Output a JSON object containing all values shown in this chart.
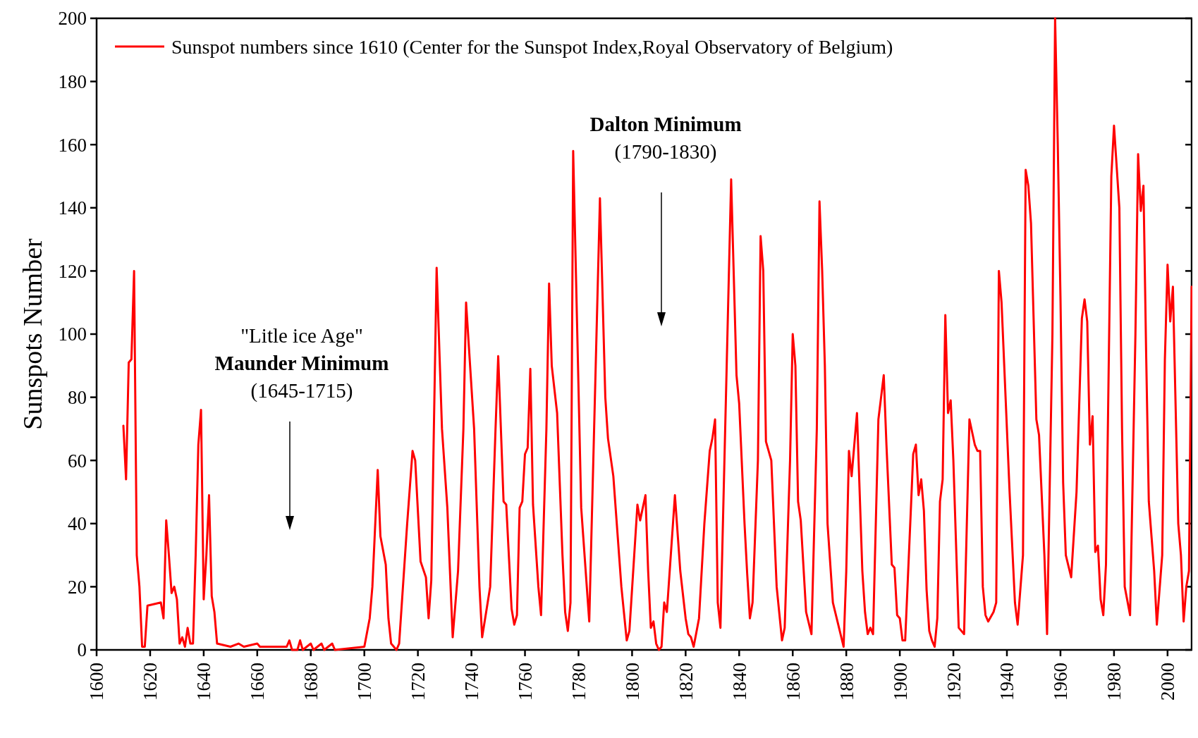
{
  "chart_data": {
    "type": "line",
    "ylabel": "Sunspots Number",
    "xlim": [
      1600,
      2009
    ],
    "xticks": [
      1600,
      1620,
      1640,
      1660,
      1680,
      1700,
      1720,
      1740,
      1760,
      1780,
      1800,
      1820,
      1840,
      1860,
      1880,
      1900,
      1920,
      1940,
      1960,
      1980,
      2000
    ],
    "ylim": [
      0,
      200
    ],
    "yticks": [
      0,
      20,
      40,
      60,
      80,
      100,
      120,
      140,
      160,
      180,
      200
    ],
    "grid": false,
    "legend": "top left",
    "marker": "none",
    "line_style": "solid",
    "x": [
      1610,
      1611,
      1612,
      1613,
      1614,
      1615,
      1616,
      1617,
      1618,
      1619,
      1624,
      1625,
      1626,
      1627,
      1628,
      1629,
      1630,
      1631,
      1632,
      1633,
      1634,
      1635,
      1636,
      1637,
      1638,
      1639,
      1640,
      1641,
      1642,
      1643,
      1644,
      1645,
      1650,
      1653,
      1655,
      1660,
      1661,
      1671,
      1672,
      1673,
      1675,
      1676,
      1677,
      1680,
      1681,
      1684,
      1685,
      1688,
      1689,
      1700,
      1702,
      1703,
      1705,
      1706,
      1708,
      1709,
      1710,
      1712,
      1713,
      1716,
      1718,
      1719,
      1721,
      1723,
      1724,
      1725,
      1727,
      1729,
      1731,
      1733,
      1735,
      1737,
      1738,
      1741,
      1743,
      1744,
      1747,
      1749,
      1750,
      1752,
      1753,
      1755,
      1756,
      1757,
      1758,
      1759,
      1760,
      1761,
      1762,
      1763,
      1765,
      1766,
      1768,
      1769,
      1770,
      1772,
      1774,
      1775,
      1776,
      1777,
      1778,
      1781,
      1784,
      1788,
      1790,
      1791,
      1793,
      1796,
      1798,
      1799,
      1802,
      1803,
      1804,
      1805,
      1806,
      1807,
      1808,
      1809,
      1810,
      1811,
      1812,
      1813,
      1816,
      1818,
      1820,
      1821,
      1822,
      1823,
      1825,
      1827,
      1829,
      1830,
      1831,
      1832,
      1833,
      1837,
      1839,
      1840,
      1842,
      1843,
      1844,
      1845,
      1847,
      1848,
      1849,
      1850,
      1852,
      1854,
      1856,
      1857,
      1859,
      1860,
      1861,
      1862,
      1863,
      1865,
      1867,
      1869,
      1870,
      1871,
      1872,
      1873,
      1875,
      1877,
      1879,
      1880,
      1881,
      1882,
      1883,
      1884,
      1885,
      1886,
      1887,
      1888,
      1889,
      1890,
      1892,
      1893,
      1894,
      1895,
      1897,
      1898,
      1899,
      1900,
      1901,
      1902,
      1904,
      1905,
      1906,
      1907,
      1908,
      1909,
      1910,
      1911,
      1912,
      1913,
      1914,
      1915,
      1916,
      1917,
      1918,
      1919,
      1920,
      1922,
      1923,
      1924,
      1926,
      1928,
      1929,
      1930,
      1931,
      1932,
      1933,
      1935,
      1936,
      1937,
      1938,
      1939,
      1941,
      1943,
      1944,
      1946,
      1947,
      1948,
      1949,
      1951,
      1952,
      1954,
      1955,
      1957,
      1958,
      1959,
      1960,
      1961,
      1962,
      1964,
      1966,
      1968,
      1969,
      1970,
      1971,
      1972,
      1973,
      1974,
      1975,
      1976,
      1977,
      1979,
      1980,
      1982,
      1983,
      1984,
      1986,
      1988,
      1989,
      1990,
      1991,
      1992,
      1993,
      1995,
      1996,
      1998,
      1999,
      2000,
      2001,
      2002,
      2004,
      2005,
      2006,
      2007,
      2008,
      2009
    ],
    "series": [
      {
        "name": "Sunspot numbers since 1610 (Center for the Sunspot Index,Royal Observatory of Belgium)",
        "color": "#ff0000",
        "values": [
          71,
          54,
          91,
          92,
          120,
          30,
          20,
          1,
          1,
          14,
          15,
          10,
          41,
          30,
          18,
          20,
          16,
          2,
          4,
          1,
          7,
          2,
          2,
          30,
          65,
          76,
          16,
          30,
          49,
          17,
          12,
          2,
          1,
          2,
          1,
          2,
          1,
          1,
          3,
          0,
          0,
          3,
          0,
          2,
          0,
          2,
          0,
          2,
          0,
          1,
          10,
          20,
          57,
          36,
          27,
          10,
          2,
          0,
          2,
          40,
          63,
          60,
          28,
          23,
          10,
          22,
          121,
          70,
          45,
          4,
          25,
          70,
          110,
          70,
          20,
          4,
          20,
          70,
          93,
          47,
          46,
          13,
          8,
          11,
          45,
          47,
          62,
          64,
          89,
          46,
          20,
          11,
          70,
          116,
          90,
          75,
          30,
          12,
          6,
          15,
          158,
          45,
          9,
          143,
          80,
          67,
          55,
          20,
          3,
          6,
          46,
          41,
          45,
          49,
          25,
          7,
          9,
          2,
          0,
          1,
          15,
          12,
          49,
          25,
          10,
          5,
          4,
          1,
          10,
          40,
          63,
          67,
          73,
          15,
          7,
          149,
          87,
          78,
          40,
          24,
          10,
          15,
          60,
          131,
          120,
          66,
          60,
          20,
          3,
          7,
          60,
          100,
          90,
          47,
          41,
          12,
          5,
          70,
          142,
          120,
          90,
          40,
          15,
          8,
          1,
          25,
          63,
          55,
          65,
          75,
          50,
          25,
          12,
          5,
          7,
          5,
          73,
          80,
          87,
          65,
          27,
          26,
          11,
          10,
          3,
          3,
          42,
          62,
          65,
          49,
          54,
          44,
          19,
          6,
          3,
          1,
          10,
          47,
          54,
          106,
          75,
          79,
          60,
          7,
          6,
          5,
          73,
          65,
          63,
          63,
          20,
          11,
          9,
          12,
          15,
          120,
          110,
          90,
          50,
          15,
          8,
          30,
          152,
          147,
          135,
          73,
          68,
          30,
          5,
          100,
          200,
          160,
          112,
          53,
          30,
          23,
          50,
          105,
          111,
          104,
          65,
          74,
          31,
          33,
          16,
          11,
          27,
          150,
          166,
          140,
          70,
          20,
          11,
          100,
          157,
          139,
          147,
          94,
          47,
          25,
          8,
          30,
          92,
          122,
          104,
          115,
          40,
          30,
          9,
          20,
          25,
          115
        ]
      }
    ],
    "annotations": [
      "\"Litle ice Age\"\nMaunder Minimum\n(1645-1715)",
      "Dalton Minimum\n(1790-1830)"
    ]
  }
}
